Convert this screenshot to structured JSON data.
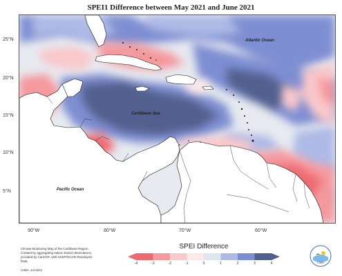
{
  "title": "SPEI1 Difference between May 2021 and June 2021",
  "lat_labels": [
    "25°N",
    "20°N",
    "15°N",
    "10°N",
    "5°N"
  ],
  "lon_labels": [
    "90°W",
    "80°W",
    "70°W",
    "60°W"
  ],
  "ocean_labels": [
    "Atlantic Ocean",
    "Caribbean Sea",
    "Pacific Ocean"
  ],
  "legend": {
    "title": "SPEI Difference",
    "ticks": [
      "-4",
      "-3",
      "-2",
      "-1",
      "0",
      "1",
      "2",
      "3",
      "4"
    ],
    "colors": [
      "#ee6a72",
      "#f4999e",
      "#f9c8ca",
      "#fce8e8",
      "#dde6ee",
      "#aebae6",
      "#7e8ed2",
      "#52608f"
    ]
  },
  "credit": {
    "text": "Climate Monitoring Map of the Caribbean Region. Created by aggregating station based observations, provided by CariCOF, with NCEP/NCAR Reanalysis Data.",
    "year": "CIMH, Jul-2021"
  },
  "logo": {
    "icon": "cimh-logo-icon",
    "text": "CIMH"
  },
  "colors": {
    "positive_strong": "#52608f",
    "positive": "#7e8ed2",
    "negative": "#ee6a72",
    "land": "#ffffff"
  }
}
